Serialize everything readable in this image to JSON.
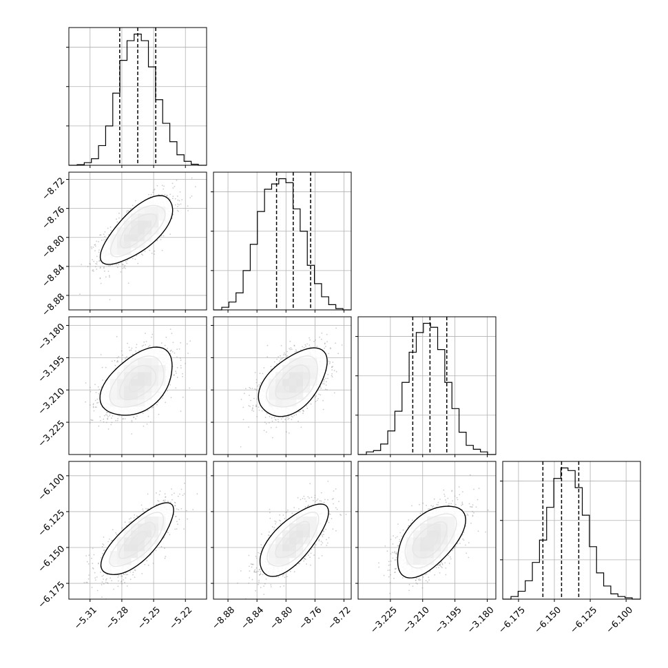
{
  "chart_data": {
    "type": "corner",
    "title": "",
    "parameter_labels": [
      "",
      "",
      "",
      ""
    ],
    "parameters": [
      {
        "index": 0,
        "range": [
          -5.33,
          -5.2
        ],
        "ticks": [
          -5.31,
          -5.28,
          -5.25,
          -5.22
        ],
        "tick_labels": [
          "−5.31",
          "−5.28",
          "−5.25",
          "−5.22"
        ],
        "quantiles": [
          -5.282,
          -5.265,
          -5.248
        ],
        "hist": [
          0.005,
          0.02,
          0.05,
          0.15,
          0.3,
          0.55,
          0.8,
          0.95,
          1.0,
          0.95,
          0.75,
          0.5,
          0.32,
          0.18,
          0.08,
          0.03,
          0.008
        ]
      },
      {
        "index": 1,
        "range": [
          -8.9,
          -8.71
        ],
        "ticks": [
          -8.88,
          -8.84,
          -8.8,
          -8.76,
          -8.72
        ],
        "tick_labels": [
          "−8.88",
          "−8.84",
          "−8.80",
          "−8.76",
          "−8.72"
        ],
        "quantiles": [
          -8.813,
          -8.79,
          -8.766
        ],
        "hist": [
          0.02,
          0.06,
          0.13,
          0.3,
          0.5,
          0.75,
          0.92,
          0.96,
          1.0,
          0.97,
          0.77,
          0.6,
          0.34,
          0.2,
          0.1,
          0.04,
          0.01
        ]
      },
      {
        "index": 2,
        "range": [
          -3.24,
          -3.176
        ],
        "ticks": [
          -3.225,
          -3.21,
          -3.195,
          -3.18
        ],
        "tick_labels": [
          "−3.225",
          "−3.210",
          "−3.195",
          "−3.180"
        ],
        "quantiles": [
          -3.2146,
          -3.2066,
          -3.1988
        ],
        "hist": [
          0.02,
          0.03,
          0.08,
          0.18,
          0.33,
          0.55,
          0.78,
          0.93,
          1.0,
          0.97,
          0.8,
          0.55,
          0.35,
          0.17,
          0.07,
          0.04,
          0.02
        ]
      },
      {
        "index": 3,
        "range": [
          -6.186,
          -6.09
        ],
        "ticks": [
          -6.175,
          -6.15,
          -6.125,
          -6.1
        ],
        "tick_labels": [
          "−6.175",
          "−6.150",
          "−6.125",
          "−6.100"
        ],
        "quantiles": [
          -6.158,
          -6.145,
          -6.133
        ],
        "hist": [
          0.02,
          0.06,
          0.14,
          0.28,
          0.45,
          0.7,
          0.92,
          1.0,
          0.98,
          0.85,
          0.64,
          0.4,
          0.2,
          0.1,
          0.04,
          0.02,
          0.01
        ]
      }
    ],
    "correlations": {
      "1_0": 0.7,
      "2_0": 0.45,
      "2_1": 0.5,
      "3_0": 0.75,
      "3_1": 0.7,
      "3_2": 0.55
    },
    "contour_levels": [
      0.5,
      1.0,
      1.5,
      2.0
    ],
    "grid": true,
    "colors": {
      "line": "#000000",
      "grid": "#b0b0b0",
      "points": "#8c8c8c",
      "density": "#000000"
    }
  }
}
